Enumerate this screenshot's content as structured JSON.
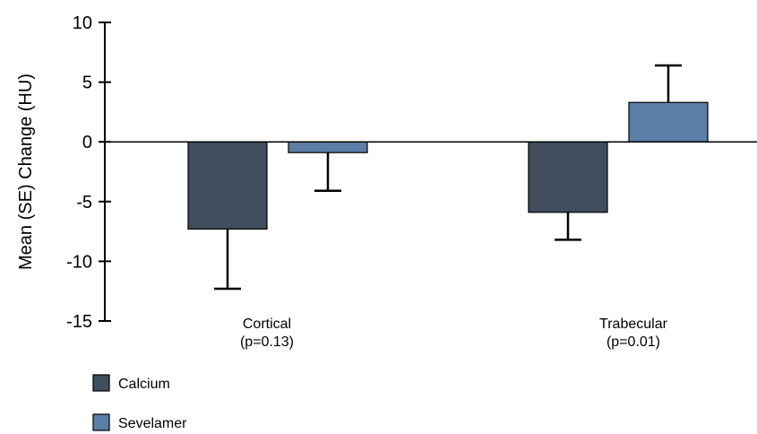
{
  "chart_data": {
    "type": "bar",
    "title": "",
    "ylabel": "Mean (SE) Change (HU)",
    "xlabel": "",
    "ylim": [
      -15,
      10
    ],
    "yticks": [
      10,
      5,
      0,
      -5,
      -10,
      -15
    ],
    "categories": [
      {
        "name": "Cortical",
        "note": "(p=0.13)"
      },
      {
        "name": "Trabecular",
        "note": "(p=0.01)"
      }
    ],
    "series": [
      {
        "name": "Calcium",
        "color": "#3f4d5c",
        "values": [
          -7.3,
          -5.9
        ],
        "error": [
          5.0,
          2.3
        ]
      },
      {
        "name": "Sevelamer",
        "color": "#5b7fa6",
        "values": [
          -0.9,
          3.3
        ],
        "error": [
          3.2,
          3.1
        ]
      }
    ],
    "error_bar_direction": "away-from-zero",
    "grid": false,
    "legend_position": "bottom-left"
  }
}
